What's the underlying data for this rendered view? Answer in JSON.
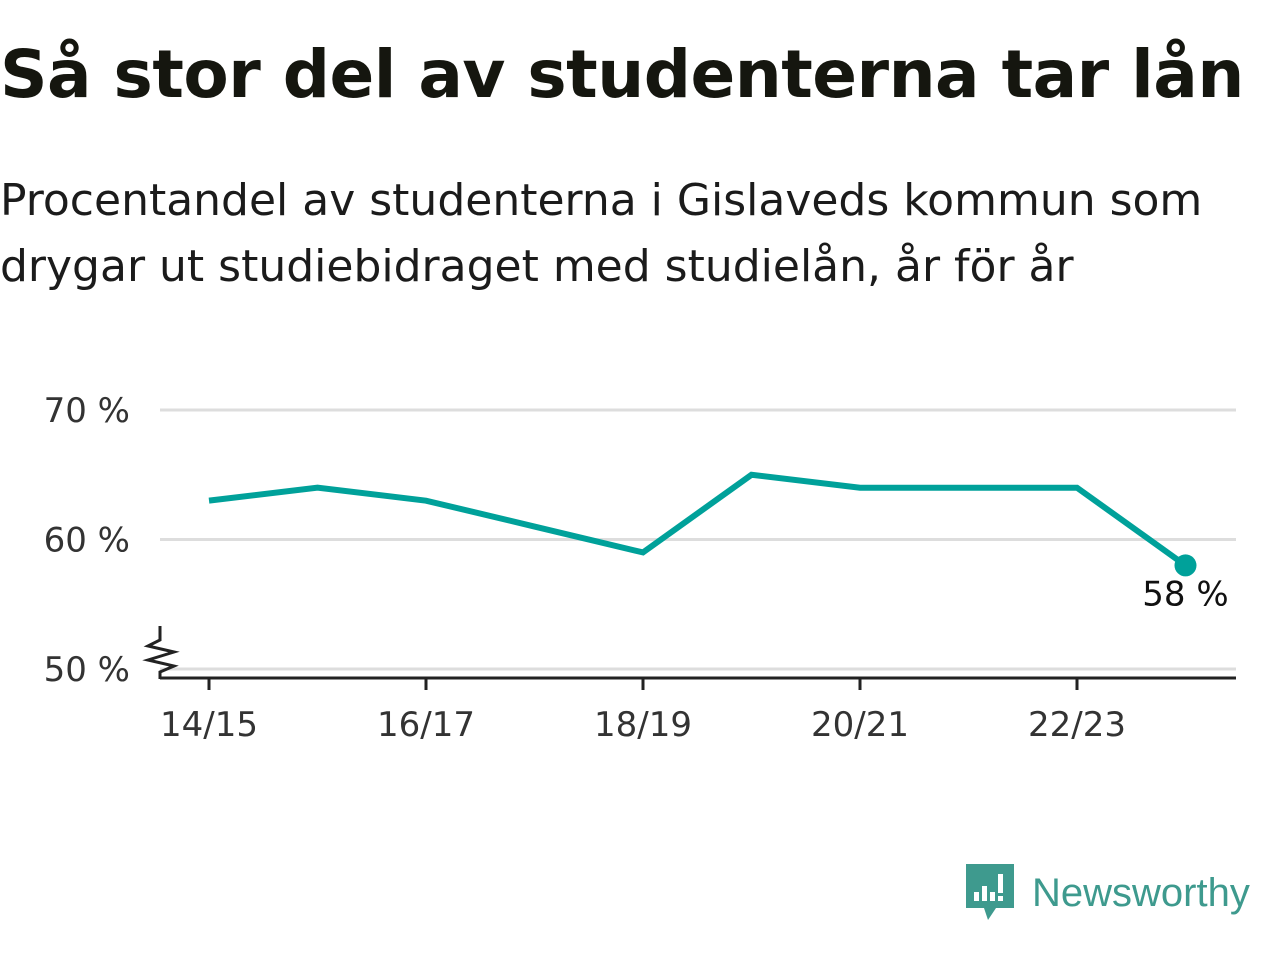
{
  "header": {
    "title": "Så stor del av studenterna tar lån",
    "subtitle": "Procentandel av studenterna i Gislaveds kommun som drygar ut studiebidraget med studielån, år för år"
  },
  "colors": {
    "line": "#00a19a",
    "grid": "#dddddd",
    "axis": "#222222",
    "brand": "#3e9a8e"
  },
  "chart_data": {
    "type": "line",
    "categories": [
      "14/15",
      "15/16",
      "16/17",
      "17/18",
      "18/19",
      "19/20",
      "20/21",
      "21/22",
      "22/23",
      "23/24"
    ],
    "series": [
      {
        "values": [
          63,
          64,
          63,
          61,
          59,
          65,
          64,
          64,
          64,
          58
        ]
      }
    ],
    "x_tick_labels": [
      "14/15",
      "16/17",
      "18/19",
      "20/21",
      "22/23"
    ],
    "y_ticks": [
      50,
      60,
      70
    ],
    "y_tick_labels": [
      "50 %",
      "60 %",
      "70 %"
    ],
    "ylim": [
      50,
      70
    ],
    "y_axis_break": true,
    "last_value_label": "58 %",
    "grid": true,
    "legend": "none"
  },
  "brand": {
    "name": "Newsworthy",
    "icon": "newsworthy-logo-icon"
  }
}
